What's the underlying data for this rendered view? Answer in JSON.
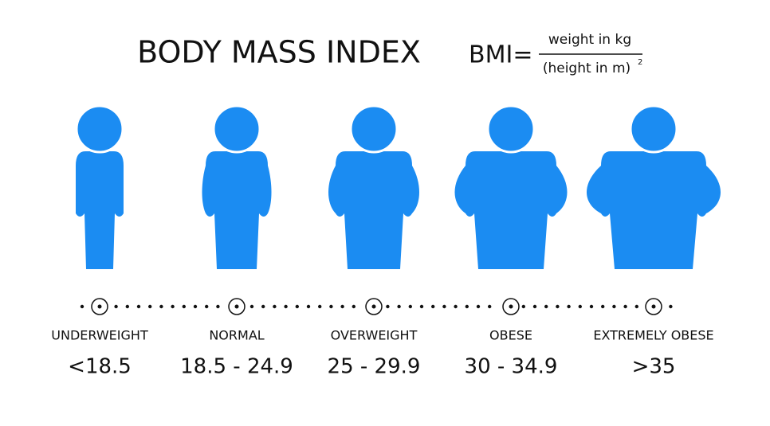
{
  "header": {
    "title": "BODY MASS INDEX",
    "formula": {
      "lhs": "BMI=",
      "numerator": "weight in kg",
      "denominator": "(height in m)",
      "exponent": "2"
    }
  },
  "categories": [
    {
      "label": "UNDERWEIGHT",
      "range": "<18.5"
    },
    {
      "label": "NORMAL",
      "range": "18.5 - 24.9"
    },
    {
      "label": "OVERWEIGHT",
      "range": "25 - 29.9"
    },
    {
      "label": "OBESE",
      "range": "30 - 34.9"
    },
    {
      "label": "EXTREMELY OBESE",
      "range": ">35"
    }
  ]
}
